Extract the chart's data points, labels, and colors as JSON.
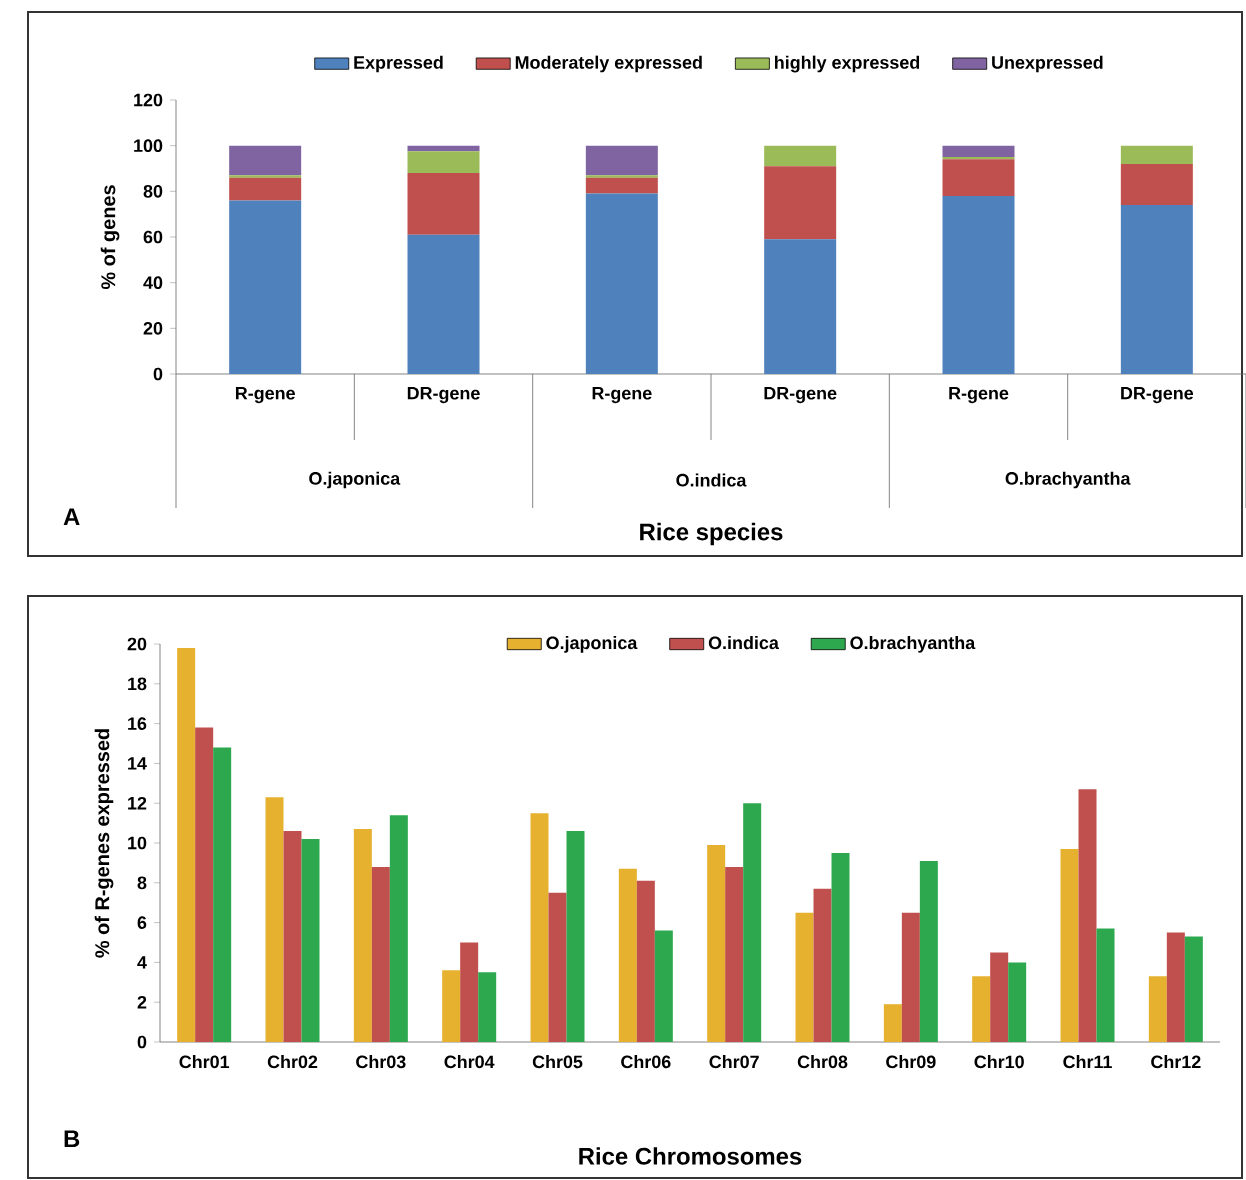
{
  "chart_data": [
    {
      "type": "bar",
      "stacked": true,
      "categories": [
        "R-gene",
        "DR-gene",
        "R-gene",
        "DR-gene",
        "R-gene",
        "DR-gene"
      ],
      "series": [
        {
          "name": "Expressed",
          "color": "#4f81bd",
          "values": [
            76,
            61,
            79,
            59,
            78,
            74
          ]
        },
        {
          "name": "Moderately expressed",
          "color": "#c0504d",
          "values": [
            10,
            27,
            7,
            32,
            16,
            18
          ]
        },
        {
          "name": "highly expressed",
          "color": "#9bbb59",
          "values": [
            1,
            9.5,
            1,
            9,
            1,
            8
          ]
        },
        {
          "name": "Unexpressed",
          "color": "#8064a2",
          "values": [
            13,
            2.5,
            13,
            0,
            5,
            0
          ]
        }
      ],
      "ylim": [
        0,
        120
      ],
      "yticks": [
        0,
        20,
        40,
        60,
        80,
        100,
        120
      ],
      "ylabel": "% of genes",
      "xlabel": "Rice species",
      "legend": "top",
      "annotations": [
        "O.japonica",
        "O.indica",
        "O.brachyantha",
        "A"
      ]
    },
    {
      "type": "bar",
      "categories": [
        "Chr01",
        "Chr02",
        "Chr03",
        "Chr04",
        "Chr05",
        "Chr06",
        "Chr07",
        "Chr08",
        "Chr09",
        "Chr10",
        "Chr11",
        "Chr12"
      ],
      "series": [
        {
          "name": "O.japonica",
          "color": "#e6b12e",
          "values": [
            19.8,
            12.3,
            10.7,
            3.6,
            11.5,
            8.7,
            9.9,
            6.5,
            1.9,
            3.3,
            9.7,
            3.3
          ]
        },
        {
          "name": "O.indica",
          "color": "#c0504d",
          "values": [
            15.8,
            10.6,
            8.8,
            5.0,
            7.5,
            8.1,
            8.8,
            7.7,
            6.5,
            4.5,
            12.7,
            5.5
          ]
        },
        {
          "name": "O.brachyantha",
          "color": "#2ea84f",
          "values": [
            14.8,
            10.2,
            11.4,
            3.5,
            10.6,
            5.6,
            12.0,
            9.5,
            9.1,
            4.0,
            5.7,
            5.3
          ]
        }
      ],
      "ylim": [
        0,
        20
      ],
      "yticks": [
        0,
        2,
        4,
        6,
        8,
        10,
        12,
        14,
        16,
        18,
        20
      ],
      "ylabel": "% of R-genes expressed",
      "xlabel": "Rice Chromosomes",
      "legend": "top",
      "annotations": [
        "B"
      ]
    }
  ]
}
